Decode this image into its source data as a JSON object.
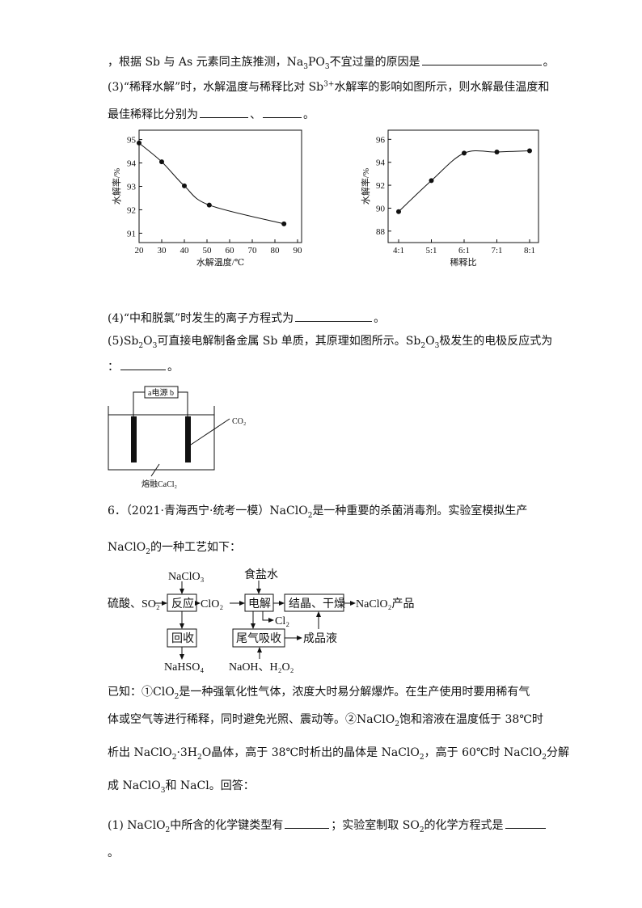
{
  "lines": {
    "l1a": "，根据 Sb 与 As 元素同主族推测，Na",
    "l1b": "PO",
    "l1c": "不宜过量的原因是",
    "l1end": "。",
    "q3a": "(3)“稀释水解”时，水解温度与稀释比对 Sb",
    "q3sup": "3+",
    "q3b": "水解率的影响如图所示，则水解最佳温度和",
    "q3c": "最佳稀释比分别为",
    "sep": "、",
    "end": "。",
    "q4": "(4)“中和脱氯”时发生的离子方程式为",
    "q5a": "(5)Sb",
    "q5b": "O",
    "q5c": "可直接电解制备金属 Sb 单质，其原理如图所示。Sb",
    "q5d": "极发生的电极反应式为",
    "q5colon": "：",
    "q6a": "6．（2021·青海西宁·统考一模）NaClO",
    "q6b": "是一种重要的杀菌消毒剂。实验室模拟生产",
    "q6c": "NaClO",
    "q6d": "的一种工艺如下：",
    "k1a": "已知：①ClO",
    "k1b": "是一种强氧化性气体，浓度大时易分解爆炸。在生产使用时要用稀有气",
    "k2a": "体或空气等进行稀释，同时避免光照、震动等。②NaClO",
    "k2b": "饱和溶液在温度低于 38℃时",
    "k3a": "析出 NaClO",
    "k3b": "·3H",
    "k3c": "O晶体，高于 38℃时析出的晶体是 NaClO",
    "k3d": "，高于 60℃时 NaClO",
    "k3e": "分解",
    "k4a": "成 NaClO",
    "k4b": "和 NaCl。回答：",
    "p1a": "(1) NaClO",
    "p1b": "中所含的化学键类型有",
    "p1c": "；实验室制取 SO",
    "p1d": "的化学方程式是",
    "p1end": "。",
    "sub2": "2",
    "sub3": "3"
  },
  "chart_data": [
    {
      "type": "line",
      "xlabel": "水解温度/℃",
      "ylabel": "水解率/%",
      "xlim": [
        20,
        90
      ],
      "ylim": [
        90.6,
        95.4
      ],
      "xticks": [
        "20",
        "30",
        "40",
        "50",
        "60",
        "70",
        "80",
        "90"
      ],
      "yticks": [
        "91",
        "92",
        "93",
        "94",
        "95"
      ],
      "x": [
        20,
        30,
        40,
        51,
        84
      ],
      "y": [
        94.85,
        94.05,
        93.02,
        92.2,
        91.4
      ],
      "grid": false,
      "smooth": true
    },
    {
      "type": "line",
      "xlabel": "稀释比",
      "ylabel": "水解率/%",
      "ylim": [
        87,
        96.8
      ],
      "categories": [
        "4:1",
        "5:1",
        "6:1",
        "7:1",
        "8:1"
      ],
      "yticks": [
        "88",
        "90",
        "92",
        "94",
        "96"
      ],
      "values": [
        89.7,
        92.4,
        94.8,
        94.9,
        95.0
      ],
      "grid": false,
      "smooth": true
    }
  ],
  "circuit": {
    "power": "a电源 b",
    "co2": "CO₂",
    "melt": "熔融CaCl₂"
  },
  "flow": {
    "naclo3": "NaClO₃",
    "feed": "硫酸、SO₂",
    "react": "反应",
    "clo2": "ClO₂",
    "brine": "食盐水",
    "electro": "电解",
    "cryst": "结晶、干燥",
    "product": "NaClO₂产品",
    "cl2": "Cl₂",
    "recover": "回收",
    "nahso4": "NaHSO₄",
    "tail": "尾气吸收",
    "liquid": "成品液",
    "naoh": "NaOH、H₂O₂"
  }
}
